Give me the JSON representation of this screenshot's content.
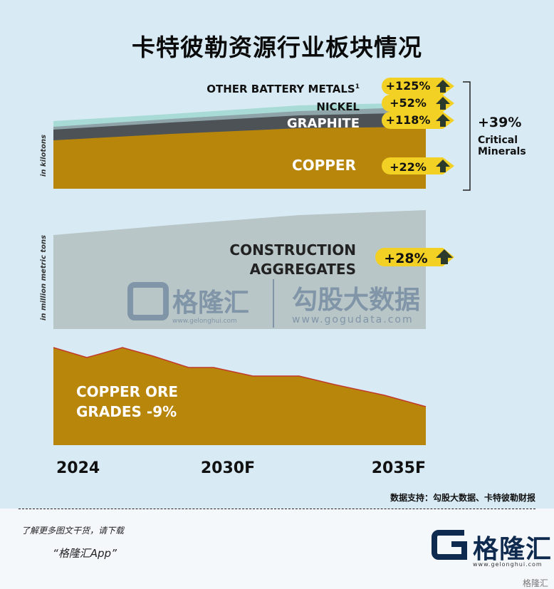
{
  "title": "卡特彼勒资源行业板块情况",
  "chart_data": [
    {
      "type": "area",
      "ylabel": "in kilotons",
      "series": [
        {
          "name": "COPPER",
          "change": "+22%",
          "color": "#b8860b"
        },
        {
          "name": "GRAPHITE",
          "change": "+118%",
          "color": "#4d5257"
        },
        {
          "name": "NICKEL",
          "change": "+52%",
          "color": "#8ea4a8"
        },
        {
          "name": "OTHER BATTERY METALS",
          "footnote": "1",
          "change": "+125%",
          "color": "#a8dad6"
        }
      ],
      "bracket_total": "+39%",
      "bracket_line1": "Critical",
      "bracket_line2": "Minerals"
    },
    {
      "type": "area",
      "ylabel": "in million metric tons",
      "series": [
        {
          "name_line1": "CONSTRUCTION",
          "name_line2": "AGGREGATES",
          "change": "+28%",
          "color": "#b9c6c8"
        }
      ]
    },
    {
      "type": "area",
      "series": [
        {
          "name_line1": "COPPER ORE",
          "name_line2": "GRADES -9%",
          "color": "#b8860b"
        }
      ]
    }
  ],
  "x_ticks": [
    "2024",
    "2030F",
    "2035F"
  ],
  "watermark": {
    "cn": "格隆汇",
    "url": "www.gelonghui.com",
    "cn2": "勾股大数据",
    "url2": "www.gogudata.com"
  },
  "source": "数据支持：勾股大数据、卡特彼勒财报",
  "footer": {
    "line1": "了解更多图文干货，请下载",
    "line2": "“格隆汇App”",
    "logo_text": "格隆汇",
    "logo_url": "www.gelonghui.com",
    "corner_watermark": "格隆汇"
  },
  "colors": {
    "background": "#d8ebf5",
    "gold": "#b8860b",
    "badge": "#f2d024",
    "arrow": "#2c3a2c"
  }
}
